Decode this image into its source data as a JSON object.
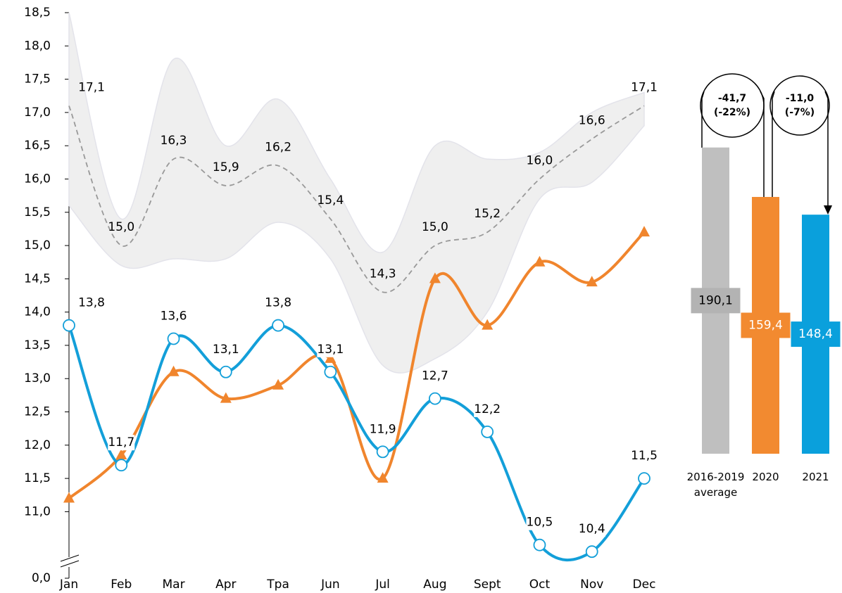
{
  "chart_data": [
    {
      "type": "line",
      "categories": [
        "Jan",
        "Feb",
        "Mar",
        "Apr",
        "Tpa",
        "Jun",
        "Jul",
        "Aug",
        "Sept",
        "Oct",
        "Nov",
        "Dec"
      ],
      "ylim": [
        0,
        18.5
      ],
      "ybreak": [
        0,
        10
      ],
      "yticks": [
        {
          "value": 0,
          "label": "0,0"
        },
        {
          "value": 11,
          "label": "11,0"
        },
        {
          "value": 11.5,
          "label": "11,5"
        },
        {
          "value": 12,
          "label": "12,0"
        },
        {
          "value": 12.5,
          "label": "12,5"
        },
        {
          "value": 13,
          "label": "13,0"
        },
        {
          "value": 13.5,
          "label": "13,5"
        },
        {
          "value": 14,
          "label": "14,0"
        },
        {
          "value": 14.5,
          "label": "14,5"
        },
        {
          "value": 15,
          "label": "15,0"
        },
        {
          "value": 15.5,
          "label": "15,5"
        },
        {
          "value": 16,
          "label": "16,0"
        },
        {
          "value": 16.5,
          "label": "16,5"
        },
        {
          "value": 17,
          "label": "17,0"
        },
        {
          "value": 17.5,
          "label": "17,5"
        },
        {
          "value": 18,
          "label": "18,0"
        },
        {
          "value": 18.5,
          "label": "18,5"
        }
      ],
      "band": {
        "color": "#efefef",
        "upper": [
          18.5,
          15.4,
          17.8,
          16.5,
          17.2,
          16.0,
          14.9,
          16.5,
          16.3,
          16.4,
          17.0,
          17.3
        ],
        "lower": [
          15.6,
          14.7,
          14.8,
          14.8,
          15.35,
          14.8,
          13.2,
          13.3,
          14.0,
          15.7,
          15.95,
          16.8
        ]
      },
      "series": [
        {
          "color": "#999999",
          "dashed": true,
          "marker": "none",
          "values": [
            17.1,
            15.0,
            16.3,
            15.9,
            16.2,
            15.4,
            14.3,
            15.0,
            15.2,
            16.0,
            16.6,
            17.1
          ],
          "value_labels": [
            "17,1",
            "15,0",
            "16,3",
            "15,9",
            "16,2",
            "15,4",
            "14,3",
            "15,0",
            "15,2",
            "16,0",
            "16,6",
            "17,1"
          ]
        },
        {
          "color": "#f0852d",
          "marker": "triangle",
          "values": [
            11.2,
            11.85,
            13.1,
            12.7,
            12.9,
            13.3,
            11.5,
            14.5,
            13.8,
            14.75,
            14.45,
            15.2
          ]
        },
        {
          "color": "#139fd9",
          "marker": "circle",
          "values": [
            13.8,
            11.7,
            13.6,
            13.1,
            13.8,
            13.1,
            11.9,
            12.7,
            12.2,
            10.5,
            10.4,
            11.5
          ],
          "value_labels": [
            "13,8",
            "11,7",
            "13,6",
            "13,1",
            "13,8",
            "13,1",
            "11,9",
            "12,7",
            "12,2",
            "10,5",
            "10,4",
            "11,5"
          ]
        }
      ]
    },
    {
      "type": "bar",
      "categories": [
        "2016-2019 average",
        "2020",
        "2021"
      ],
      "values": [
        190.1,
        159.4,
        148.4
      ],
      "value_labels": [
        "190,1",
        "159,4",
        "148,4"
      ],
      "colors": [
        "#bfbfbf",
        "#f28a30",
        "#0aa0dc"
      ],
      "ylim": [
        0,
        200
      ],
      "annotations": [
        "-41,7 (-22%)",
        "-11,0 (-7%)"
      ]
    }
  ]
}
